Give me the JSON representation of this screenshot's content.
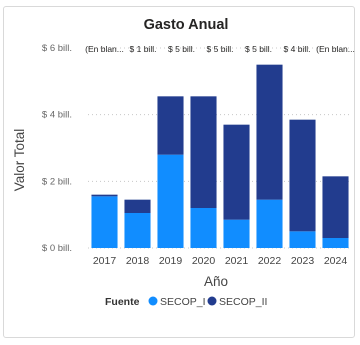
{
  "chart_data": {
    "type": "bar",
    "stacked": true,
    "title": "Gasto Anual",
    "xlabel": "Año",
    "ylabel": "Valor Total",
    "categories": [
      "2017",
      "2018",
      "2019",
      "2020",
      "2021",
      "2022",
      "2023",
      "2024"
    ],
    "series": [
      {
        "name": "SECOP_I",
        "color": "#118DFF",
        "values": [
          1.55,
          1.05,
          2.8,
          1.2,
          0.85,
          1.45,
          0.5,
          0.3
        ]
      },
      {
        "name": "SECOP_II",
        "color": "#223C8E",
        "values": [
          0.05,
          0.4,
          1.75,
          3.35,
          2.85,
          4.05,
          3.35,
          1.85
        ]
      }
    ],
    "data_labels": [
      "(En blan...",
      "$ 1 bill.",
      "$ 5 bill.",
      "$ 5 bill.",
      "$ 5 bill.",
      "$ 4 bill.",
      "(En blan..."
    ],
    "yticks": [
      {
        "value": 0,
        "label": "$ 0 bill."
      },
      {
        "value": 2,
        "label": "$ 2 bill."
      },
      {
        "value": 4,
        "label": "$ 4 bill."
      },
      {
        "value": 6,
        "label": "$ 6 bill."
      }
    ],
    "ylim": [
      0,
      6
    ],
    "grid": true,
    "legend": {
      "title": "Fuente",
      "position": "bottom-left"
    }
  }
}
